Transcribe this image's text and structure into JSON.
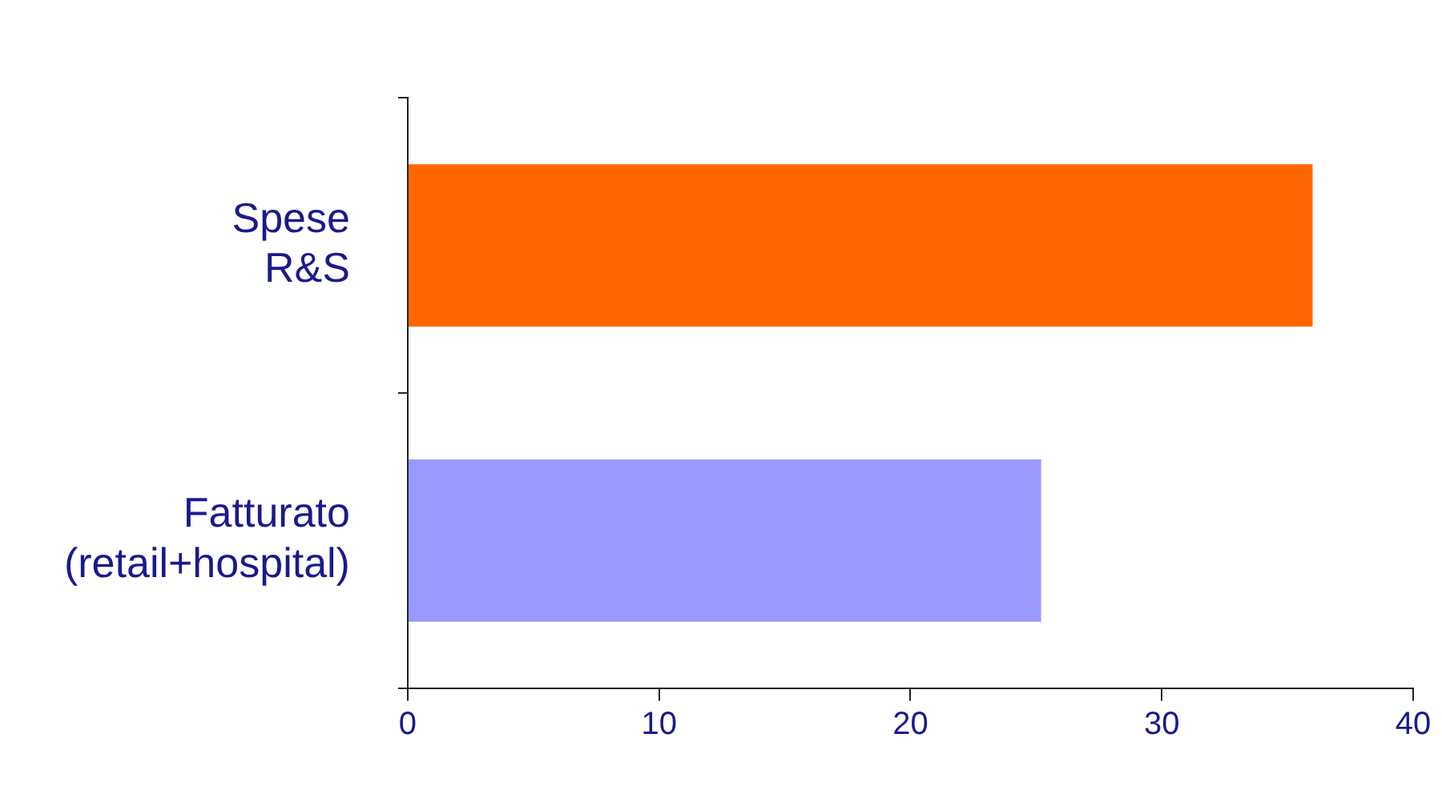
{
  "chart_data": {
    "type": "bar",
    "orientation": "horizontal",
    "categories": [
      "Spese R&S",
      "Fatturato (retail+hospital)"
    ],
    "values": [
      36,
      25.2
    ],
    "colors": [
      "#ff6600",
      "#9999ff"
    ],
    "xlim": [
      0,
      40
    ],
    "xticks": [
      0,
      10,
      20,
      30,
      40
    ],
    "grid": false,
    "legend": false
  }
}
